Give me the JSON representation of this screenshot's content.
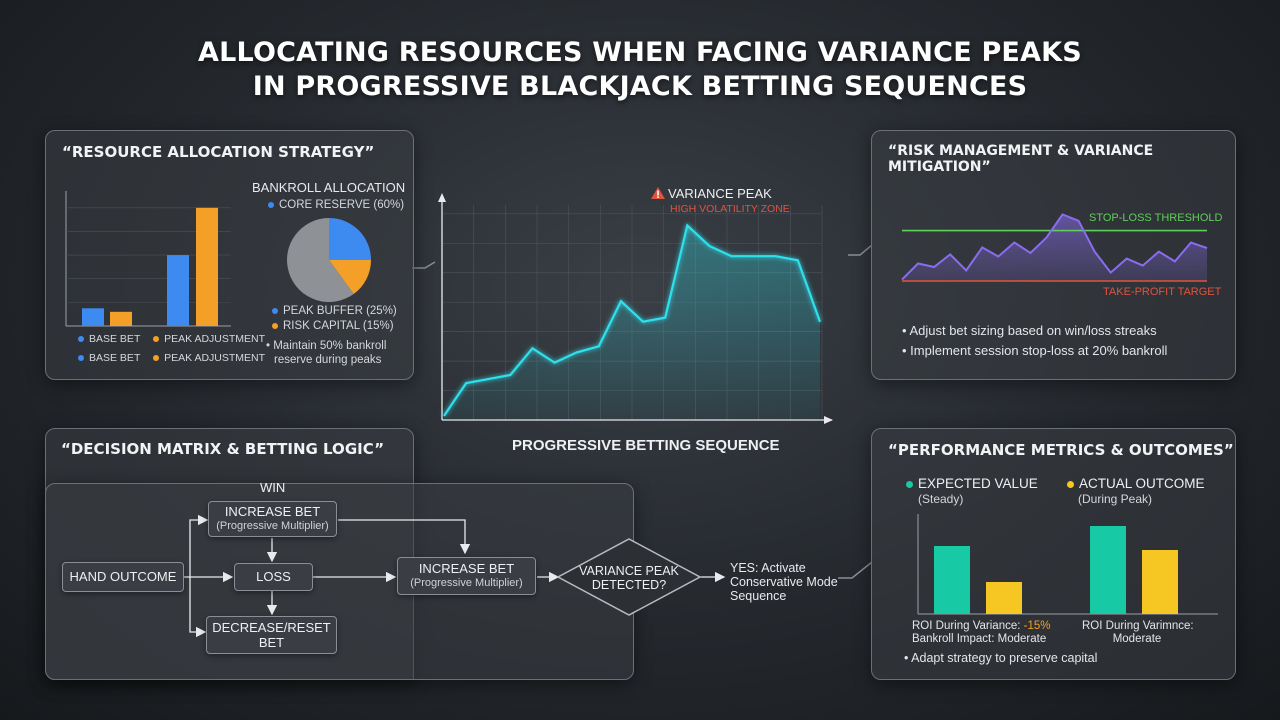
{
  "title": {
    "line1": "ALLOCATING RESOURCES WHEN FACING VARIANCE PEAKS",
    "line2": "IN PROGRESSIVE BLACKJACK BETTING SEQUENCES"
  },
  "resource_panel": {
    "title": "“RESOURCE ALLOCATION STRATEGY”",
    "bankroll_title": "BANKROLL ALLOCATION",
    "core_reserve": "CORE RESERVE (60%)",
    "peak_buffer": "PEAK BUFFER (25%)",
    "risk_capital": "RISK CAPITAL (15%)",
    "note_line1": "• Maintain 50% bankroll",
    "note_line2": "reserve during peaks",
    "legend_row1": [
      "BASE BET",
      "PEAK ADJUSTMENT"
    ],
    "legend_row2": [
      "BASE BET",
      "PEAK ADJUSTMENT"
    ]
  },
  "center": {
    "peak_label": "VARIANCE PEAK",
    "zone_label": "HIGH VOLATILITY ZONE",
    "xlabel": "PROGRESSIVE BETTING SEQUENCE",
    "warning_icon": "warning-triangle-icon"
  },
  "risk_panel": {
    "title": "“RISK MANAGEMENT & VARIANCE MITIGATION”",
    "stop_loss": "STOP-LOSS THRESHOLD",
    "take_profit": "TAKE-PROFIT TARGET",
    "bullet1": "• Adjust bet sizing based on win/loss streaks",
    "bullet2": "• Implement session stop-loss at 20% bankroll"
  },
  "decision_panel": {
    "title": "“DECISION MATRIX & BETTING LOGIC”",
    "win_label": "WIN",
    "hand_outcome": "HAND OUTCOME",
    "increase_bet": "INCREASE BET",
    "progressive_multiplier": "(Progressive Multiplier)",
    "loss": "LOSS",
    "decrease_reset_line1": "DECREASE/RESET",
    "decrease_reset_line2": "BET",
    "increase_bet_2": "INCREASE BET",
    "progressive_multiplier_2": "(Progressive Multiplier)",
    "variance_line1": "VARIANCE PEAK",
    "variance_line2": "DETECTED?",
    "yes_line1": "YES: Activate",
    "yes_line2": "Conservative Mode",
    "yes_line3": "Sequence"
  },
  "metrics_panel": {
    "title": "“PERFORMANCE METRICS & OUTCOMES”",
    "ev_label": "EXPECTED VALUE",
    "ev_sub": "(Steady)",
    "ao_label": "ACTUAL OUTCOME",
    "ao_sub": "(During Peak)",
    "roi1_prefix": "ROI During Variance: ",
    "roi1_value": "-15%",
    "roi1_line2": "Bankroll Impact: Moderate",
    "roi2_line1": "ROI During Varimnce:",
    "roi2_line2": "Moderate",
    "bullet": "• Adapt strategy to preserve capital"
  },
  "colors": {
    "blue": "#3d8bf0",
    "orange": "#f4a028",
    "cyan": "#2fe0ec",
    "teal": "#17c9a4",
    "yellow": "#f6c623",
    "green": "#5fce5a",
    "red": "#e0533f",
    "purple": "#8a6cf0"
  },
  "chart_data": [
    {
      "type": "bar",
      "categories": [
        "BASE BET",
        "PEAK ADJUSTMENT"
      ],
      "series": [
        {
          "values": [
            15,
            12
          ]
        },
        {
          "values": [
            60,
            100
          ]
        }
      ],
      "ylim": [
        0,
        110
      ]
    },
    {
      "type": "pie",
      "labels": [
        "CORE RESERVE (60%)",
        "PEAK BUFFER (25%)",
        "RISK CAPITAL (15%)"
      ],
      "values": [
        60,
        25,
        15
      ]
    },
    {
      "type": "line",
      "x": [
        0,
        1,
        2,
        3,
        4,
        5,
        6,
        7,
        8,
        9,
        10,
        11,
        12,
        13,
        14,
        15,
        16,
        17
      ],
      "y": [
        2,
        18,
        20,
        22,
        35,
        28,
        33,
        36,
        58,
        48,
        50,
        95,
        85,
        80,
        80,
        80,
        78,
        48
      ],
      "ylim": [
        0,
        105
      ],
      "xlabel": "PROGRESSIVE BETTING SEQUENCE"
    },
    {
      "type": "line",
      "x": [
        0,
        1,
        2,
        3,
        4,
        5,
        6,
        7,
        8,
        9,
        10,
        11,
        12,
        13,
        14,
        15,
        16,
        17,
        18,
        19
      ],
      "y": [
        2,
        25,
        20,
        38,
        15,
        48,
        35,
        55,
        40,
        62,
        95,
        86,
        42,
        12,
        32,
        22,
        42,
        28,
        55,
        47
      ],
      "ylim": [
        0,
        100
      ],
      "reference_lines": [
        {
          "label": "STOP-LOSS THRESHOLD",
          "y": 72
        },
        {
          "label": "TAKE-PROFIT TARGET",
          "y": 0
        }
      ]
    },
    {
      "type": "bar",
      "categories": [
        "1",
        "2"
      ],
      "series": [
        {
          "name": "EXPECTED VALUE",
          "values": [
            68,
            88
          ]
        },
        {
          "name": "ACTUAL OUTCOME",
          "values": [
            32,
            64
          ]
        }
      ],
      "ylim": [
        0,
        100
      ]
    }
  ]
}
